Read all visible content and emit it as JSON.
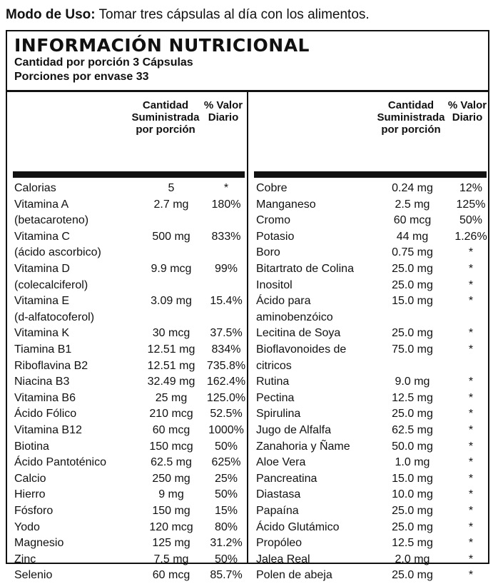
{
  "usage": {
    "label": "Modo de Uso:",
    "text": " Tomar tres cápsulas al día con los alimentos."
  },
  "panel": {
    "title": "INFORMACIÓN NUTRICIONAL",
    "serving": "Cantidad por porción 3 Cápsulas",
    "servings": "Porciones por envase 33"
  },
  "columns": {
    "amount": [
      "Cantidad",
      "Suministrada",
      "por porción"
    ],
    "dv": [
      "% Valor",
      "Diario"
    ]
  },
  "left_rows": [
    [
      "Calorias",
      "5",
      "*"
    ],
    [
      "Vitamina A",
      "2.7 mg",
      "180%"
    ],
    [
      "(betacaroteno)",
      "",
      ""
    ],
    [
      "Vitamina C",
      "500 mg",
      "833%"
    ],
    [
      "(ácido ascorbico)",
      "",
      ""
    ],
    [
      "Vitamina D",
      "9.9 mcg",
      "99%"
    ],
    [
      "(colecalciferol)",
      "",
      ""
    ],
    [
      "Vitamina E",
      "3.09 mg",
      "15.4%"
    ],
    [
      "(d-alfatocoferol)",
      "",
      ""
    ],
    [
      "Vitamina K",
      "30 mcg",
      "37.5%"
    ],
    [
      "Tiamina B1",
      "12.51 mg",
      "834%"
    ],
    [
      "Riboflavina B2",
      "12.51 mg",
      "735.8%"
    ],
    [
      "Niacina B3",
      "32.49 mg",
      "162.4%"
    ],
    [
      "Vitamina B6",
      "25 mg",
      "125.0%"
    ],
    [
      "Ácido Fólico",
      "210 mcg",
      "52.5%"
    ],
    [
      "Vitamina B12",
      "60 mcg",
      "1000%"
    ],
    [
      "Biotina",
      "150 mcg",
      "50%"
    ],
    [
      "Ácido Pantoténico",
      "62.5 mg",
      "625%"
    ],
    [
      "Calcio",
      "250 mg",
      "25%"
    ],
    [
      "Hierro",
      "9 mg",
      "50%"
    ],
    [
      "Fósforo",
      "150 mg",
      "15%"
    ],
    [
      "Yodo",
      "120 mcg",
      "80%"
    ],
    [
      "Magnesio",
      "125 mg",
      "31.2%"
    ],
    [
      "Zinc",
      "7.5 mg",
      "50%"
    ],
    [
      "Selenio",
      "60 mcg",
      "85.7%"
    ]
  ],
  "right_rows": [
    [
      "Cobre",
      "0.24 mg",
      "12%"
    ],
    [
      "Manganeso",
      "2.5 mg",
      "125%"
    ],
    [
      "Cromo",
      "60 mcg",
      "50%"
    ],
    [
      "Potasio",
      "44 mg",
      "1.26%"
    ],
    [
      "Boro",
      "0.75 mg",
      "*"
    ],
    [
      "Bitartrato de Colina",
      "25.0 mg",
      "*"
    ],
    [
      "Inositol",
      "25.0 mg",
      "*"
    ],
    [
      "Ácido para",
      "15.0 mg",
      "*"
    ],
    [
      "aminobenzóico",
      "",
      ""
    ],
    [
      "Lecitina de Soya",
      "25.0 mg",
      "*"
    ],
    [
      "Bioflavonoides de",
      "75.0 mg",
      "*"
    ],
    [
      "citricos",
      "",
      ""
    ],
    [
      "Rutina",
      "9.0 mg",
      "*"
    ],
    [
      "Pectina",
      "12.5 mg",
      "*"
    ],
    [
      "Spirulina",
      "25.0 mg",
      "*"
    ],
    [
      "Jugo de Alfalfa",
      "62.5 mg",
      "*"
    ],
    [
      "Zanahoria y Ñame",
      "50.0 mg",
      "*"
    ],
    [
      "Aloe Vera",
      "1.0 mg",
      "*"
    ],
    [
      "Pancreatina",
      "15.0 mg",
      "*"
    ],
    [
      "Diastasa",
      "10.0 mg",
      "*"
    ],
    [
      "Papaína",
      "25.0 mg",
      "*"
    ],
    [
      "Ácido Glutámico",
      "25.0 mg",
      "*"
    ],
    [
      "Propóleo",
      "12.5 mg",
      "*"
    ],
    [
      "Jalea Real",
      "2.0 mg",
      "*"
    ],
    [
      "Polen de abeja",
      "25.0 mg",
      "*"
    ]
  ]
}
